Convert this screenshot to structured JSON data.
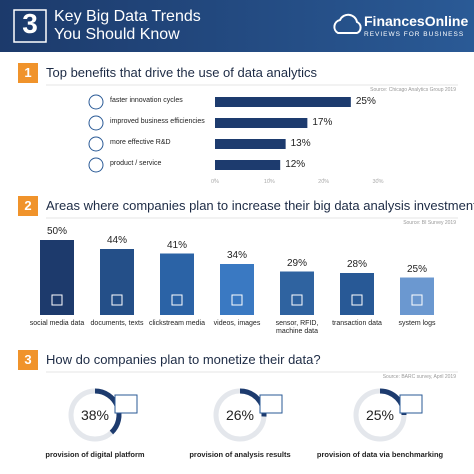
{
  "header": {
    "number": "3",
    "title": "Key Big Data Trends You Should Know",
    "brand": "FinancesOnline",
    "tagline": "REVIEWS FOR BUSINESS"
  },
  "chart_data": [
    {
      "type": "hbar",
      "number": "1",
      "title": "Top benefits that drive the use of data analytics",
      "source": "Source: Chicago Analytics Group 2019",
      "categories": [
        "faster innovation cycles",
        "improved business efficiencies",
        "more effective R&D",
        "product / service"
      ],
      "values": [
        25,
        17,
        13,
        12
      ],
      "value_labels": [
        "25%",
        "17%",
        "13%",
        "12%"
      ],
      "color": "#1d3b6e",
      "xlim": [
        0,
        30
      ],
      "xticks": [
        {
          "value": 0,
          "label": "0%"
        },
        {
          "value": 10,
          "label": "10%"
        },
        {
          "value": 20,
          "label": "20%"
        },
        {
          "value": 30,
          "label": "30%"
        }
      ]
    },
    {
      "type": "column",
      "number": "2",
      "title": "Areas where companies plan to increase their big data analysis investment",
      "source": "Source: BI Survey 2019",
      "categories": [
        "social media data",
        "documents, texts",
        "clickstream media",
        "videos, images",
        "sensor, RFID, machine data",
        "transaction data",
        "system logs"
      ],
      "values": [
        50,
        44,
        41,
        34,
        29,
        28,
        25
      ],
      "value_labels": [
        "50%",
        "44%",
        "41%",
        "34%",
        "29%",
        "28%",
        "25%"
      ],
      "colors": [
        "#1d3a6c",
        "#244f88",
        "#2b63a6",
        "#3a79c2",
        "#2f63a0",
        "#285996",
        "#6b98d0"
      ],
      "ylim": [
        0,
        50
      ]
    },
    {
      "type": "donut",
      "number": "3",
      "title": "How do companies plan to monetize their data?",
      "source": "Source: BARC survey, April 2019",
      "categories": [
        "provision of digital platform",
        "provision of analysis results",
        "provision of data via benchmarking"
      ],
      "values": [
        38,
        26,
        25
      ],
      "value_labels": [
        "38%",
        "26%",
        "25%"
      ],
      "color": "#1d3b6e",
      "track_color": "#e4e7ec"
    }
  ]
}
